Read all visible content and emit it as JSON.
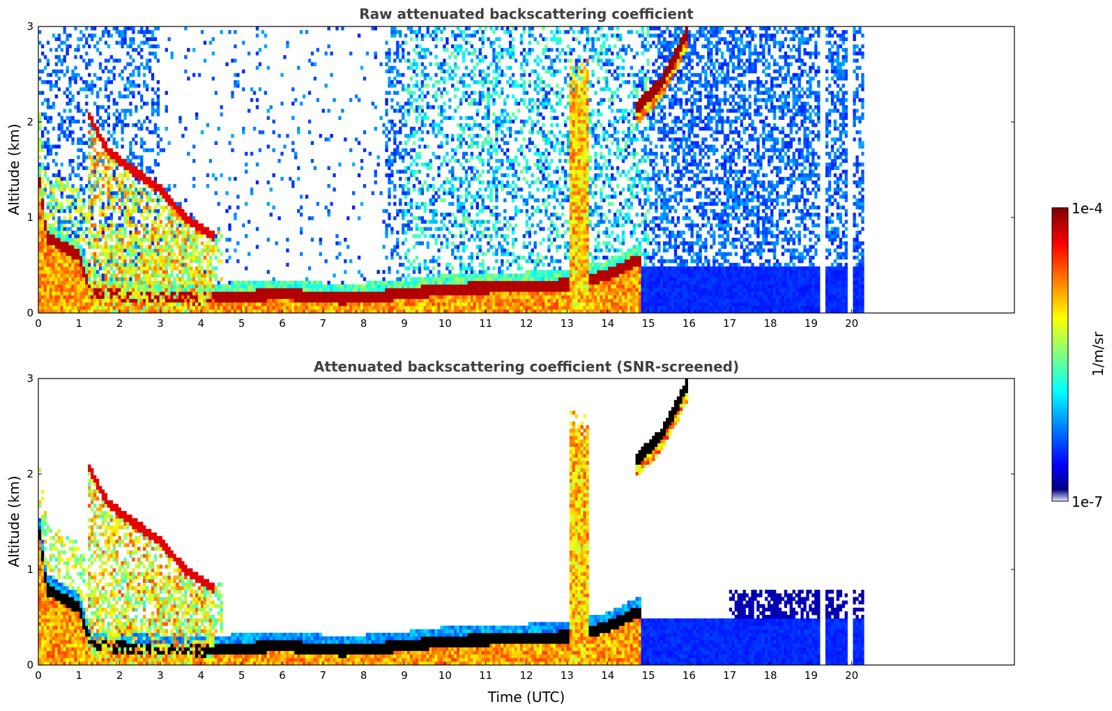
{
  "chart_data": [
    {
      "type": "heatmap",
      "title": "Raw attenuated backscattering coefficient",
      "xlabel": "",
      "ylabel": "Altitude (km)",
      "xlim": [
        0,
        24
      ],
      "ylim": [
        0,
        3
      ],
      "x_ticks": [
        0,
        1,
        2,
        3,
        4,
        5,
        6,
        7,
        8,
        9,
        10,
        11,
        12,
        13,
        14,
        15,
        16,
        17,
        18,
        19,
        20
      ],
      "y_ticks": [
        0,
        1,
        2,
        3
      ],
      "data_extent_x": [
        0,
        20.3
      ],
      "colormap": "jet",
      "color_scale": "log",
      "clim": [
        1e-07,
        0.0001
      ],
      "features": [
        {
          "feature": "boundary_layer_top",
          "points": [
            [
              0,
              1.5
            ],
            [
              0.2,
              0.8
            ],
            [
              1,
              0.6
            ],
            [
              1.3,
              0.2
            ],
            [
              4,
              0.15
            ],
            [
              6,
              0.2
            ],
            [
              7.5,
              0.15
            ],
            [
              9,
              0.2
            ],
            [
              10,
              0.25
            ],
            [
              12,
              0.28
            ],
            [
              13,
              0.3
            ],
            [
              14,
              0.4
            ],
            [
              14.7,
              0.55
            ]
          ]
        },
        {
          "feature": "rising_cloud_layer",
          "points": [
            [
              14.7,
              2.15
            ],
            [
              15.3,
              2.4
            ],
            [
              15.8,
              2.8
            ],
            [
              16.0,
              3.0
            ]
          ]
        },
        {
          "feature": "cloud_descending",
          "points": [
            [
              1.2,
              2.1
            ],
            [
              1.7,
              1.7
            ],
            [
              2.3,
              1.5
            ],
            [
              3.0,
              1.3
            ],
            [
              3.6,
              1.0
            ],
            [
              4.3,
              0.8
            ]
          ]
        },
        {
          "feature": "cloud_column",
          "x_start": 13.05,
          "x_end": 13.5,
          "altitude_top": 2.7
        }
      ]
    },
    {
      "type": "heatmap",
      "title": "Attenuated backscattering coefficient (SNR-screened)",
      "xlabel": "Time (UTC)",
      "ylabel": "Altitude (km)",
      "xlim": [
        0,
        24
      ],
      "ylim": [
        0,
        3
      ],
      "x_ticks": [
        0,
        1,
        2,
        3,
        4,
        5,
        6,
        7,
        8,
        9,
        10,
        11,
        12,
        13,
        14,
        15,
        16,
        17,
        18,
        19,
        20
      ],
      "y_ticks": [
        0,
        1,
        2,
        3
      ],
      "data_extent_x": [
        0,
        20.3
      ],
      "colormap": "jet",
      "color_scale": "log",
      "clim": [
        1e-07,
        0.0001
      ]
    }
  ],
  "colorbar": {
    "max_label": "1e-4",
    "min_label": "1e-7",
    "unit_label": "1/m/sr"
  },
  "colors": {
    "jet": [
      "#00007f",
      "#0000ff",
      "#007fff",
      "#00ffff",
      "#7fff7f",
      "#ffff00",
      "#ff7f00",
      "#ff0000",
      "#7f0000"
    ],
    "background": "#ffffff",
    "title": "#404040"
  }
}
